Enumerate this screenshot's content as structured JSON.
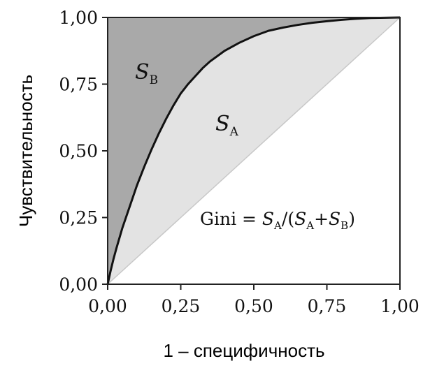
{
  "chart_data": {
    "type": "area",
    "xlabel": "1 – специфичность",
    "ylabel": "Чувствительность",
    "xlim": [
      0,
      1
    ],
    "ylim": [
      0,
      1
    ],
    "x_ticks": [
      0,
      0.25,
      0.5,
      0.75,
      1
    ],
    "y_ticks": [
      0,
      0.25,
      0.5,
      0.75,
      1
    ],
    "x_tick_labels": [
      "0,00",
      "0,25",
      "0,50",
      "0,75",
      "1,00"
    ],
    "y_tick_labels": [
      "0,00",
      "0,25",
      "0,50",
      "0,75",
      "1,00"
    ],
    "grid": false,
    "series": [
      {
        "x": [
          0,
          0.005,
          0.01,
          0.02,
          0.03,
          0.05,
          0.075,
          0.1,
          0.125,
          0.15,
          0.175,
          0.2,
          0.225,
          0.25,
          0.275,
          0.3,
          0.325,
          0.35,
          0.4,
          0.45,
          0.5,
          0.55,
          0.6,
          0.65,
          0.7,
          0.75,
          0.8,
          0.85,
          0.9,
          0.95,
          1
        ],
        "y": [
          0,
          0.025,
          0.05,
          0.095,
          0.135,
          0.21,
          0.29,
          0.37,
          0.44,
          0.505,
          0.565,
          0.62,
          0.67,
          0.715,
          0.75,
          0.78,
          0.81,
          0.835,
          0.875,
          0.905,
          0.93,
          0.95,
          0.962,
          0.972,
          0.98,
          0.986,
          0.991,
          0.995,
          0.998,
          0.999,
          1
        ]
      },
      {
        "x": [
          0,
          1
        ],
        "y": [
          0,
          1
        ]
      }
    ],
    "annotations": {
      "sb": {
        "main": "S",
        "sub": "B"
      },
      "sa": {
        "main": "S",
        "sub": "A"
      },
      "gini": {
        "prefix": "Gini = ",
        "s1": "S",
        "s1sub": "A",
        "mid": "/(",
        "s2": "S",
        "s2sub": "A",
        "plus": "+",
        "s3": "S",
        "s3sub": "B",
        "close": ")"
      }
    },
    "colors": {
      "region_a": "#e3e3e3",
      "region_b": "#a9a9a9",
      "curve": "#111111",
      "diagonal": "#c8c8c8",
      "frame": "#222222"
    }
  }
}
